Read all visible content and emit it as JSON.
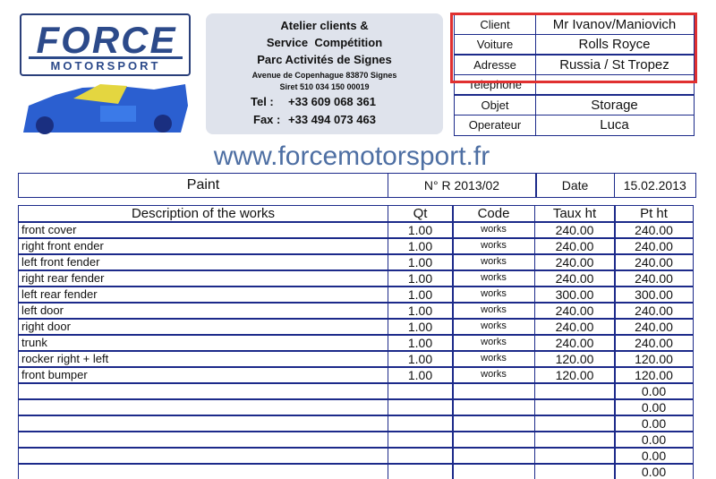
{
  "logo": {
    "brand": "FORCE",
    "sub": "MOTORSPORT"
  },
  "company": {
    "lines": [
      "Atelier clients &",
      "Service  Compétition",
      "Parc Activités de Signes",
      "Avenue de Copenhague 83870 Signes",
      "Siret 510 034 150 00019"
    ],
    "tel_label": "Tel :",
    "tel": "+33 609 068 361",
    "fax_label": "Fax :",
    "fax": "+33 494 073 463"
  },
  "info": {
    "rows": [
      [
        "Client",
        "Mr Ivanov/Maniovich"
      ],
      [
        "Voiture",
        "Rolls Royce"
      ],
      [
        "Adresse",
        "Russia / St Tropez"
      ],
      [
        "Telephone"
      ],
      [
        "Objet",
        "Storage"
      ],
      [
        "Operateur",
        "Luca"
      ]
    ]
  },
  "website": "www.forcemotorsport.fr",
  "job": {
    "title": "Paint",
    "number": "N° R 2013/02",
    "date_label": "Date",
    "date": "15.02.2013"
  },
  "works": {
    "headers": [
      "Description of the works",
      "Qt",
      "Code",
      "Taux ht",
      "Pt ht"
    ],
    "rows": [
      {
        "description": "front cover",
        "qt": "1.00",
        "code": "works",
        "taux": "240.00",
        "pt": "240.00"
      },
      {
        "description": "right front ender",
        "qt": "1.00",
        "code": "works",
        "taux": "240.00",
        "pt": "240.00"
      },
      {
        "description": "left front fender",
        "qt": "1.00",
        "code": "works",
        "taux": "240.00",
        "pt": "240.00"
      },
      {
        "description": "right rear fender",
        "qt": "1.00",
        "code": "works",
        "taux": "240.00",
        "pt": "240.00"
      },
      {
        "description": "left rear fender",
        "qt": "1.00",
        "code": "works",
        "taux": "300.00",
        "pt": "300.00"
      },
      {
        "description": "left door",
        "qt": "1.00",
        "code": "works",
        "taux": "240.00",
        "pt": "240.00"
      },
      {
        "description": "right door",
        "qt": "1.00",
        "code": "works",
        "taux": "240.00",
        "pt": "240.00"
      },
      {
        "description": "trunk",
        "qt": "1.00",
        "code": "works",
        "taux": "240.00",
        "pt": "240.00"
      },
      {
        "description": "rocker right + left",
        "qt": "1.00",
        "code": "works",
        "taux": "120.00",
        "pt": "120.00"
      },
      {
        "description": "front bumper",
        "qt": "1.00",
        "code": "works",
        "taux": "120.00",
        "pt": "120.00"
      },
      {
        "pt": "0.00"
      },
      {
        "pt": "0.00"
      },
      {
        "pt": "0.00"
      },
      {
        "pt": "0.00"
      },
      {
        "pt": "0.00"
      },
      {
        "pt": "0.00"
      }
    ]
  }
}
